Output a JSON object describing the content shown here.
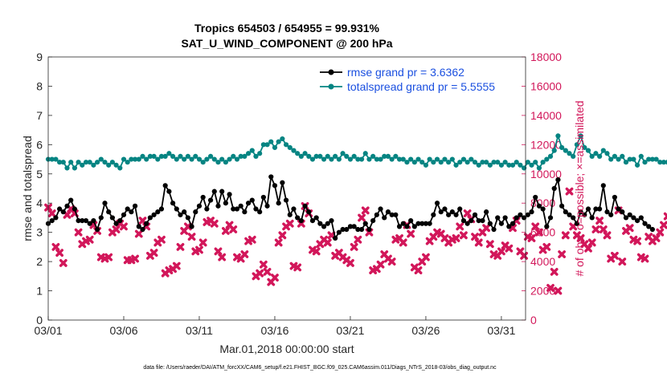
{
  "chart_data": {
    "type": "line",
    "title": "Tropics 654503 / 654955 = 99.931%",
    "subtitle": "SAT_U_WIND_COMPONENT @ 200 hPa",
    "xlabel": "Mar.01,2018 00:00:00 start",
    "ylabel": "rmse and totalspread",
    "y2label": "# of obs: o=possible; ×=assimilated",
    "footnote": "data file: /Users/raeder/DAI/ATM_forcXX/CAM6_setup/f.e21.FHIST_BGC.f09_025.CAM6assim.011/Diags_NTrS_2018-03/obs_diag_output.nc",
    "xlim": [
      0,
      31.6
    ],
    "ylim": [
      0,
      9
    ],
    "y2lim": [
      0,
      18000
    ],
    "xticks": [
      {
        "v": 0,
        "label": "03/01"
      },
      {
        "v": 5,
        "label": "03/06"
      },
      {
        "v": 10,
        "label": "03/11"
      },
      {
        "v": 15,
        "label": "03/16"
      },
      {
        "v": 20,
        "label": "03/21"
      },
      {
        "v": 25,
        "label": "03/26"
      },
      {
        "v": 30,
        "label": "03/31"
      }
    ],
    "yticks": [
      {
        "v": 0,
        "label": "0"
      },
      {
        "v": 1,
        "label": "1"
      },
      {
        "v": 2,
        "label": "2"
      },
      {
        "v": 3,
        "label": "3"
      },
      {
        "v": 4,
        "label": "4"
      },
      {
        "v": 5,
        "label": "5"
      },
      {
        "v": 6,
        "label": "6"
      },
      {
        "v": 7,
        "label": "7"
      },
      {
        "v": 8,
        "label": "8"
      },
      {
        "v": 9,
        "label": "9"
      }
    ],
    "y2ticks": [
      {
        "v": 0,
        "label": "0"
      },
      {
        "v": 2000,
        "label": "2000"
      },
      {
        "v": 4000,
        "label": "4000"
      },
      {
        "v": 6000,
        "label": "6000"
      },
      {
        "v": 8000,
        "label": "8000"
      },
      {
        "v": 10000,
        "label": "10000"
      },
      {
        "v": 12000,
        "label": "12000"
      },
      {
        "v": 14000,
        "label": "14000"
      },
      {
        "v": 16000,
        "label": "16000"
      },
      {
        "v": 18000,
        "label": "18000"
      }
    ],
    "legend_position": "top-right",
    "x_start": 0,
    "x_step": 0.25,
    "series": [
      {
        "name": "rmse grand pr = 3.6362",
        "color": "#000000",
        "marker": "circle",
        "values": [
          3.3,
          3.4,
          3.5,
          3.8,
          3.7,
          3.9,
          4.1,
          3.8,
          3.4,
          3.4,
          3.4,
          3.3,
          3.4,
          3.1,
          3.5,
          4.0,
          3.7,
          3.5,
          3.3,
          3.4,
          3.6,
          3.8,
          3.7,
          3.9,
          3.2,
          3.1,
          3.3,
          3.5,
          3.6,
          3.7,
          3.8,
          4.6,
          4.4,
          4.0,
          3.8,
          3.6,
          3.7,
          3.5,
          3.2,
          3.7,
          3.9,
          4.2,
          3.8,
          4.1,
          4.4,
          3.9,
          4.4,
          4.0,
          4.3,
          3.8,
          3.8,
          3.9,
          3.7,
          4.0,
          4.1,
          3.8,
          3.7,
          4.2,
          3.9,
          4.9,
          4.6,
          4.0,
          4.7,
          4.1,
          3.6,
          3.8,
          3.5,
          3.4,
          3.9,
          3.7,
          3.4,
          3.5,
          3.3,
          3.2,
          3.3,
          3.4,
          2.8,
          3.0,
          3.1,
          3.1,
          3.2,
          3.2,
          3.1,
          3.1,
          3.3,
          3.1,
          3.4,
          3.6,
          3.8,
          3.5,
          3.7,
          3.6,
          3.6,
          3.2,
          3.3,
          3.2,
          3.4,
          3.2,
          3.3,
          3.3,
          3.3,
          3.3,
          3.6,
          4.0,
          3.7,
          3.8,
          3.6,
          3.7,
          3.6,
          3.8,
          3.4,
          3.3,
          3.4,
          3.6,
          3.4,
          3.4,
          3.7,
          3.3,
          3.1,
          3.5,
          3.3,
          3.5,
          3.2,
          3.3,
          3.5,
          3.6,
          3.5,
          3.6,
          3.7,
          4.2,
          3.9,
          3.8,
          3.2,
          3.5,
          4.5,
          4.8,
          3.9,
          3.7,
          3.6,
          3.5,
          3.3,
          3.7,
          3.6,
          3.8,
          3.5,
          3.8,
          3.8,
          4.6,
          3.7,
          3.6,
          4.2,
          3.8,
          3.7,
          3.5,
          3.6,
          3.5,
          3.4,
          3.5,
          3.3,
          3.2,
          3.1
        ]
      },
      {
        "name": "totalspread grand pr = 5.5555",
        "color": "#058482",
        "marker": "circle",
        "values": [
          5.5,
          5.5,
          5.5,
          5.4,
          5.4,
          5.2,
          5.4,
          5.2,
          5.4,
          5.3,
          5.4,
          5.4,
          5.3,
          5.4,
          5.5,
          5.4,
          5.3,
          5.4,
          5.3,
          5.2,
          5.5,
          5.4,
          5.5,
          5.5,
          5.5,
          5.6,
          5.5,
          5.6,
          5.6,
          5.5,
          5.6,
          5.6,
          5.7,
          5.6,
          5.5,
          5.6,
          5.5,
          5.6,
          5.5,
          5.6,
          5.5,
          5.4,
          5.5,
          5.6,
          5.5,
          5.4,
          5.5,
          5.4,
          5.5,
          5.6,
          5.5,
          5.6,
          5.6,
          5.7,
          5.8,
          5.6,
          5.7,
          6.0,
          6.0,
          6.1,
          5.9,
          6.1,
          6.2,
          6.0,
          5.9,
          5.8,
          5.7,
          5.6,
          5.7,
          5.6,
          5.5,
          5.6,
          5.6,
          5.5,
          5.6,
          5.5,
          5.6,
          5.5,
          5.7,
          5.6,
          5.5,
          5.6,
          5.5,
          5.5,
          5.7,
          5.5,
          5.6,
          5.5,
          5.5,
          5.6,
          5.6,
          5.5,
          5.6,
          5.5,
          5.5,
          5.4,
          5.5,
          5.4,
          5.5,
          5.4,
          5.3,
          5.5,
          5.4,
          5.5,
          5.4,
          5.5,
          5.4,
          5.5,
          5.3,
          5.4,
          5.5,
          5.4,
          5.5,
          5.4,
          5.3,
          5.4,
          5.4,
          5.3,
          5.4,
          5.4,
          5.3,
          5.4,
          5.3,
          5.3,
          5.4,
          5.3,
          5.2,
          5.4,
          5.3,
          5.4,
          5.2,
          5.4,
          5.5,
          5.6,
          5.8,
          6.3,
          5.9,
          5.8,
          5.7,
          5.6,
          6.0,
          6.3,
          5.9,
          5.8,
          5.6,
          5.7,
          5.6,
          5.8,
          5.7,
          5.5,
          5.6,
          5.5,
          5.6,
          5.4,
          5.5,
          5.5,
          5.3,
          5.6,
          5.4,
          5.5,
          5.5,
          5.5,
          5.4,
          5.4,
          5.4,
          5.4,
          5.4,
          5.5,
          5.5,
          5.4
        ]
      }
    ],
    "obs_count_series": {
      "name": "# of obs",
      "axis": "right",
      "color": "#d2175a",
      "marker": "x",
      "values": [
        7700,
        7300,
        5000,
        4600,
        3900,
        7200,
        7600,
        7300,
        6000,
        5200,
        5400,
        5500,
        6500,
        6100,
        4300,
        4200,
        4300,
        6000,
        6200,
        6600,
        6400,
        4100,
        4100,
        4200,
        5900,
        6800,
        6400,
        4400,
        4600,
        5300,
        5500,
        3200,
        3400,
        3500,
        3700,
        5000,
        6100,
        6400,
        5700,
        4700,
        4800,
        5300,
        6700,
        6800,
        6600,
        4700,
        4300,
        6100,
        6500,
        6200,
        4300,
        4200,
        4500,
        5400,
        5500,
        3000,
        3200,
        3800,
        3300,
        2600,
        2900,
        5300,
        5800,
        6400,
        6600,
        3700,
        3600,
        6600,
        7800,
        7300,
        4800,
        4700,
        5200,
        5500,
        5300,
        5800,
        4400,
        4600,
        4300,
        4100,
        3900,
        5000,
        5500,
        7000,
        7500,
        6000,
        3400,
        3500,
        3800,
        4500,
        4200,
        4000,
        5500,
        5600,
        5300,
        6500,
        5900,
        3600,
        3400,
        4000,
        4300,
        5400,
        5700,
        6000,
        5900,
        5600,
        5300,
        5500,
        5600,
        6400,
        5800,
        7300,
        6900,
        5700,
        5300,
        6000,
        6300,
        5200,
        4500,
        4400,
        4700,
        5100,
        4900,
        6300,
        6800,
        4700,
        4400,
        5700,
        5600,
        6400,
        6000,
        4800,
        5000,
        2200,
        3300,
        2000,
        4500,
        5800,
        8800,
        6400,
        5800,
        5600,
        5200,
        4900,
        5300,
        6200,
        6800,
        6200,
        5800,
        4200,
        4400,
        7500,
        4000,
        6100,
        6300,
        5500,
        5400,
        4300,
        4200,
        5700,
        5400,
        5600,
        6000,
        6500,
        7100,
        8200,
        4100,
        4100,
        0
      ]
    }
  }
}
